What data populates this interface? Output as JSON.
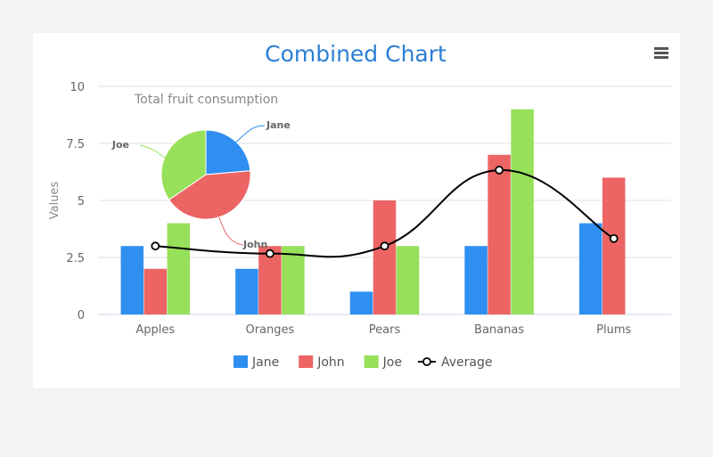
{
  "chart_data": {
    "type": "bar",
    "title": "Combined Chart",
    "ylabel": "Values",
    "xlabel": "",
    "ylim": [
      0,
      10
    ],
    "yticks": [
      "0",
      "2.5",
      "5",
      "7.5",
      "10"
    ],
    "ytick_values": [
      0,
      2.5,
      5,
      7.5,
      10
    ],
    "grid": true,
    "legend_position": "bottom-center",
    "categories": [
      "Apples",
      "Oranges",
      "Pears",
      "Bananas",
      "Plums"
    ],
    "series": [
      {
        "name": "Jane",
        "type": "bar",
        "color": "#2f8ff0",
        "values": [
          3,
          2,
          1,
          3,
          4
        ]
      },
      {
        "name": "John",
        "type": "bar",
        "color": "#ec6464",
        "values": [
          2,
          3,
          5,
          7,
          6
        ]
      },
      {
        "name": "Joe",
        "type": "bar",
        "color": "#96e05a",
        "values": [
          4,
          3,
          3,
          9,
          0
        ]
      },
      {
        "name": "Average",
        "type": "spline",
        "color": "#000000",
        "values": [
          3,
          2.67,
          3,
          6.33,
          3.33
        ]
      }
    ],
    "pie": {
      "title": "Total fruit consumption",
      "slices": [
        {
          "name": "Jane",
          "value": 13,
          "color": "#2f8ff0"
        },
        {
          "name": "John",
          "value": 23,
          "color": "#ec6464"
        },
        {
          "name": "Joe",
          "value": 19,
          "color": "#96e05a"
        }
      ]
    }
  },
  "menu": {
    "icon": "hamburger-menu-icon"
  }
}
